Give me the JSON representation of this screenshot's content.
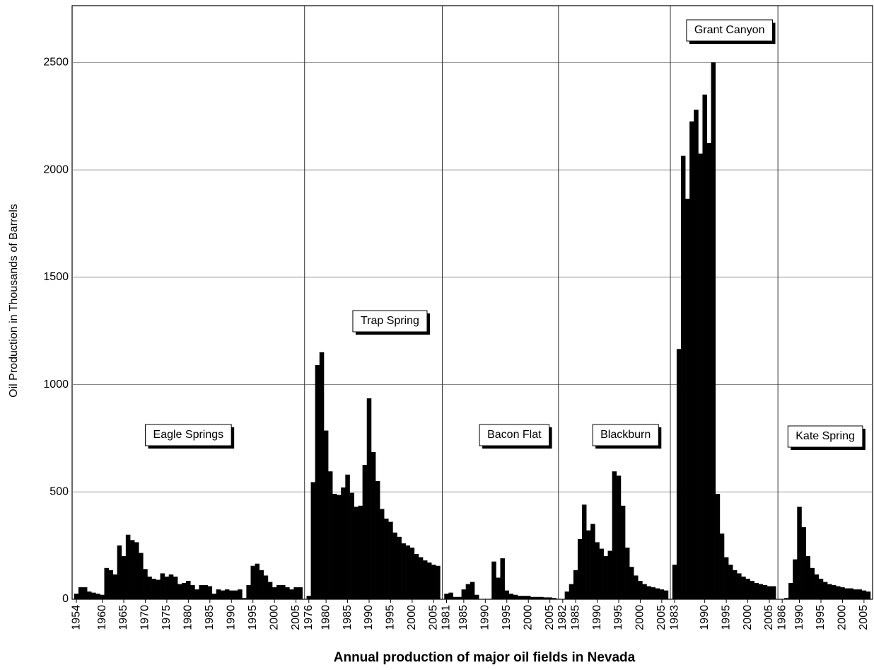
{
  "chart_data": {
    "type": "bar",
    "title": "Annual production of major oil fields in Nevada",
    "ylabel": "Oil Production in Thousands of Barrels",
    "ylim": [
      0,
      2765
    ],
    "yticks": [
      0,
      500,
      1000,
      1500,
      2000,
      2500
    ],
    "grid": true,
    "color": "#000000",
    "panels": [
      {
        "name": "Eagle Springs",
        "categories": [
          "1954",
          null,
          null,
          null,
          null,
          null,
          "1960",
          null,
          null,
          null,
          null,
          "1965",
          null,
          null,
          null,
          null,
          "1970",
          null,
          null,
          null,
          null,
          "1975",
          null,
          null,
          null,
          null,
          "1980",
          null,
          null,
          null,
          null,
          "1985",
          null,
          null,
          null,
          null,
          "1990",
          null,
          null,
          null,
          null,
          "1995",
          null,
          null,
          null,
          null,
          "2000",
          null,
          null,
          null,
          null,
          "2005",
          null
        ],
        "values": [
          25,
          55,
          55,
          35,
          30,
          25,
          20,
          145,
          135,
          115,
          250,
          200,
          300,
          275,
          265,
          215,
          140,
          105,
          95,
          90,
          120,
          105,
          115,
          105,
          70,
          75,
          85,
          65,
          45,
          65,
          65,
          60,
          25,
          45,
          40,
          45,
          40,
          40,
          45,
          5,
          65,
          155,
          165,
          135,
          110,
          80,
          55,
          65,
          65,
          55,
          45,
          55,
          55
        ]
      },
      {
        "name": "Trap Spring",
        "categories": [
          "1976",
          null,
          null,
          null,
          "1980",
          null,
          null,
          null,
          null,
          "1985",
          null,
          null,
          null,
          null,
          "1990",
          null,
          null,
          null,
          null,
          "1995",
          null,
          null,
          null,
          null,
          "2000",
          null,
          null,
          null,
          null,
          "2005",
          null
        ],
        "values": [
          15,
          545,
          1090,
          1150,
          785,
          595,
          490,
          485,
          520,
          580,
          495,
          430,
          435,
          625,
          935,
          685,
          550,
          420,
          375,
          360,
          310,
          290,
          260,
          250,
          240,
          210,
          195,
          180,
          170,
          160,
          155
        ]
      },
      {
        "name": "Bacon Flat",
        "categories": [
          "1981",
          null,
          null,
          null,
          "1985",
          null,
          null,
          null,
          null,
          "1990",
          null,
          null,
          null,
          null,
          "1995",
          null,
          null,
          null,
          null,
          "2000",
          null,
          null,
          null,
          null,
          "2005",
          null
        ],
        "values": [
          25,
          30,
          10,
          10,
          45,
          70,
          80,
          20,
          0,
          0,
          0,
          175,
          100,
          190,
          40,
          25,
          20,
          15,
          15,
          15,
          10,
          10,
          10,
          8,
          8,
          5
        ]
      },
      {
        "name": "Blackburn",
        "categories": [
          "1982",
          null,
          null,
          "1985",
          null,
          null,
          null,
          null,
          "1990",
          null,
          null,
          null,
          null,
          "1995",
          null,
          null,
          null,
          null,
          "2000",
          null,
          null,
          null,
          null,
          "2005",
          null
        ],
        "values": [
          0,
          35,
          70,
          135,
          280,
          440,
          320,
          350,
          265,
          235,
          200,
          225,
          595,
          575,
          435,
          240,
          150,
          110,
          85,
          70,
          60,
          55,
          50,
          45,
          40
        ]
      },
      {
        "name": "Grant Canyon",
        "categories": [
          "1983",
          null,
          null,
          null,
          null,
          null,
          null,
          "1990",
          null,
          null,
          null,
          null,
          "1995",
          null,
          null,
          null,
          null,
          "2000",
          null,
          null,
          null,
          null,
          "2005",
          null
        ],
        "values": [
          160,
          1165,
          2065,
          1865,
          2225,
          2280,
          2075,
          2350,
          2125,
          2500,
          490,
          305,
          195,
          160,
          135,
          120,
          105,
          95,
          85,
          75,
          70,
          65,
          60,
          60
        ]
      },
      {
        "name": "Kate Spring",
        "categories": [
          "1986",
          null,
          null,
          null,
          "1990",
          null,
          null,
          null,
          null,
          "1995",
          null,
          null,
          null,
          null,
          "2000",
          null,
          null,
          null,
          null,
          "2005",
          null
        ],
        "values": [
          0,
          5,
          75,
          185,
          430,
          335,
          200,
          145,
          115,
          95,
          80,
          70,
          65,
          60,
          55,
          50,
          50,
          45,
          45,
          40,
          35
        ]
      }
    ]
  }
}
